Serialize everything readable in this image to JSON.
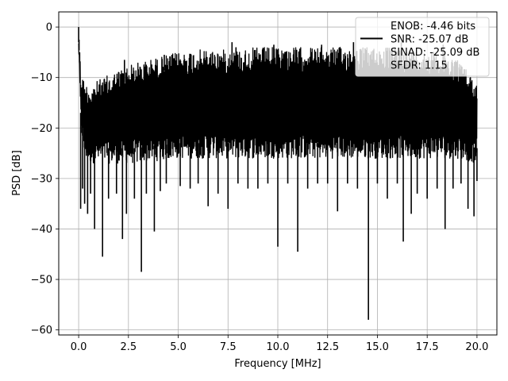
{
  "chart_data": {
    "type": "line",
    "xlabel": "Frequency [MHz]",
    "ylabel": "PSD [dB]",
    "xlim": [
      -1.0,
      21.0
    ],
    "ylim": [
      -61.0,
      3.0
    ],
    "xticks": [
      0.0,
      2.5,
      5.0,
      7.5,
      10.0,
      12.5,
      15.0,
      17.5,
      20.0
    ],
    "xtick_labels": [
      "0.0",
      "2.5",
      "5.0",
      "7.5",
      "10.0",
      "12.5",
      "15.0",
      "17.5",
      "20.0"
    ],
    "yticks": [
      0,
      -10,
      -20,
      -30,
      -40,
      -50,
      -60
    ],
    "ytick_labels": [
      "0",
      "−10",
      "−20",
      "−30",
      "−40",
      "−50",
      "−60"
    ],
    "grid": true,
    "legend_placement": "top-right",
    "series_color": "#000000",
    "legend": [
      {
        "text": "ENOB: -4.46 bits",
        "has_line": false
      },
      {
        "text": "SNR: -25.07 dB",
        "has_line": true
      },
      {
        "text": "SINAD: -25.09 dB",
        "has_line": false
      },
      {
        "text": "SFDR: 1.15",
        "has_line": false
      }
    ],
    "band": {
      "x": [
        0.0,
        0.1,
        0.3,
        0.6,
        1.0,
        1.5,
        2.0,
        2.5,
        3.0,
        3.5,
        4.0,
        5.0,
        6.0,
        7.0,
        8.0,
        9.0,
        10.0,
        11.0,
        12.0,
        13.0,
        14.0,
        15.0,
        16.0,
        17.0,
        18.0,
        19.0,
        20.0
      ],
      "upper": [
        0.0,
        -8.0,
        -11.0,
        -11.5,
        -10.5,
        -9.5,
        -8.5,
        -7.5,
        -7.0,
        -6.5,
        -6.0,
        -5.0,
        -4.5,
        -4.5,
        -4.5,
        -4.0,
        -4.0,
        -4.0,
        -4.0,
        -4.0,
        -4.0,
        -4.0,
        -4.0,
        -4.5,
        -5.0,
        -6.0,
        -11.0
      ],
      "lower": [
        -5.0,
        -20.0,
        -26.0,
        -27.0,
        -27.0,
        -27.0,
        -27.0,
        -27.0,
        -27.0,
        -26.5,
        -26.5,
        -26.0,
        -26.0,
        -26.0,
        -26.0,
        -26.0,
        -26.0,
        -26.0,
        -26.0,
        -26.0,
        -26.0,
        -26.0,
        -26.0,
        -26.0,
        -26.0,
        -26.0,
        -27.0
      ]
    },
    "dips": [
      {
        "x": 0.1,
        "y": -36.0
      },
      {
        "x": 0.2,
        "y": -32.0
      },
      {
        "x": 0.3,
        "y": -35.0
      },
      {
        "x": 0.45,
        "y": -37.0
      },
      {
        "x": 0.6,
        "y": -33.0
      },
      {
        "x": 0.8,
        "y": -40.0
      },
      {
        "x": 1.2,
        "y": -45.5
      },
      {
        "x": 1.5,
        "y": -34.0
      },
      {
        "x": 1.9,
        "y": -33.0
      },
      {
        "x": 2.2,
        "y": -42.0
      },
      {
        "x": 2.4,
        "y": -37.0
      },
      {
        "x": 2.8,
        "y": -34.0
      },
      {
        "x": 3.15,
        "y": -48.5
      },
      {
        "x": 3.4,
        "y": -33.0
      },
      {
        "x": 3.8,
        "y": -40.5
      },
      {
        "x": 4.1,
        "y": -32.5
      },
      {
        "x": 4.4,
        "y": -31.0
      },
      {
        "x": 5.1,
        "y": -31.5
      },
      {
        "x": 5.6,
        "y": -32.0
      },
      {
        "x": 6.0,
        "y": -31.0
      },
      {
        "x": 6.5,
        "y": -35.5
      },
      {
        "x": 7.0,
        "y": -33.0
      },
      {
        "x": 7.5,
        "y": -36.0
      },
      {
        "x": 8.0,
        "y": -31.0
      },
      {
        "x": 8.5,
        "y": -32.0
      },
      {
        "x": 9.0,
        "y": -32.0
      },
      {
        "x": 9.5,
        "y": -31.0
      },
      {
        "x": 10.0,
        "y": -43.5
      },
      {
        "x": 10.5,
        "y": -31.0
      },
      {
        "x": 11.0,
        "y": -44.5
      },
      {
        "x": 11.5,
        "y": -32.0
      },
      {
        "x": 12.0,
        "y": -31.0
      },
      {
        "x": 12.5,
        "y": -31.0
      },
      {
        "x": 13.0,
        "y": -36.5
      },
      {
        "x": 13.5,
        "y": -31.0
      },
      {
        "x": 14.0,
        "y": -32.0
      },
      {
        "x": 14.55,
        "y": -58.0
      },
      {
        "x": 15.0,
        "y": -31.0
      },
      {
        "x": 15.5,
        "y": -34.0
      },
      {
        "x": 16.0,
        "y": -31.0
      },
      {
        "x": 16.3,
        "y": -42.5
      },
      {
        "x": 16.7,
        "y": -37.0
      },
      {
        "x": 17.0,
        "y": -33.0
      },
      {
        "x": 17.5,
        "y": -34.0
      },
      {
        "x": 18.0,
        "y": -32.0
      },
      {
        "x": 18.4,
        "y": -40.0
      },
      {
        "x": 18.8,
        "y": -32.0
      },
      {
        "x": 19.2,
        "y": -31.0
      },
      {
        "x": 19.55,
        "y": -36.0
      },
      {
        "x": 19.85,
        "y": -37.5
      },
      {
        "x": 20.0,
        "y": -30.5
      }
    ],
    "peaks": [
      {
        "x": 0.0,
        "y": 0.0
      },
      {
        "x": 0.02,
        "y": -2.5
      },
      {
        "x": 0.05,
        "y": -5.0
      },
      {
        "x": 2.3,
        "y": -6.5
      },
      {
        "x": 4.3,
        "y": -5.5
      },
      {
        "x": 7.7,
        "y": -3.0
      },
      {
        "x": 7.9,
        "y": -4.0
      },
      {
        "x": 9.8,
        "y": -3.5
      },
      {
        "x": 12.2,
        "y": -3.5
      },
      {
        "x": 13.8,
        "y": -3.0
      },
      {
        "x": 16.2,
        "y": -3.0
      },
      {
        "x": 18.3,
        "y": -3.5
      }
    ]
  }
}
